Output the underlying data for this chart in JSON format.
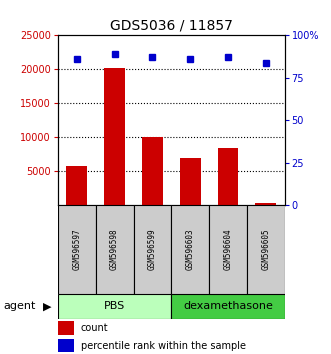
{
  "title": "GDS5036 / 11857",
  "samples": [
    "GSM596597",
    "GSM596598",
    "GSM596599",
    "GSM596603",
    "GSM596604",
    "GSM596605"
  ],
  "counts": [
    5800,
    20200,
    10000,
    7000,
    8500,
    400
  ],
  "percentiles": [
    86,
    89,
    87,
    86,
    87,
    84
  ],
  "groups": [
    {
      "label": "PBS",
      "indices": [
        0,
        1,
        2
      ],
      "color": "#bbffbb"
    },
    {
      "label": "dexamethasone",
      "indices": [
        3,
        4,
        5
      ],
      "color": "#44dd44"
    }
  ],
  "bar_color": "#cc0000",
  "dot_color": "#0000cc",
  "left_ylim": [
    0,
    25000
  ],
  "left_yticks": [
    5000,
    10000,
    15000,
    20000,
    25000
  ],
  "left_yticklabels": [
    "5000",
    "10000",
    "15000",
    "20000",
    "25000"
  ],
  "right_ylim": [
    0,
    100
  ],
  "right_yticks": [
    0,
    25,
    50,
    75,
    100
  ],
  "right_yticklabels": [
    "0",
    "25",
    "50",
    "75",
    "100%"
  ],
  "left_tick_color": "#cc0000",
  "right_tick_color": "#0000cc",
  "bar_width": 0.55,
  "agent_label": "agent",
  "legend_count_label": "count",
  "legend_percentile_label": "percentile rank within the sample",
  "sample_box_color": "#cccccc",
  "pbs_color": "#bbffbb",
  "dex_color": "#44cc44"
}
